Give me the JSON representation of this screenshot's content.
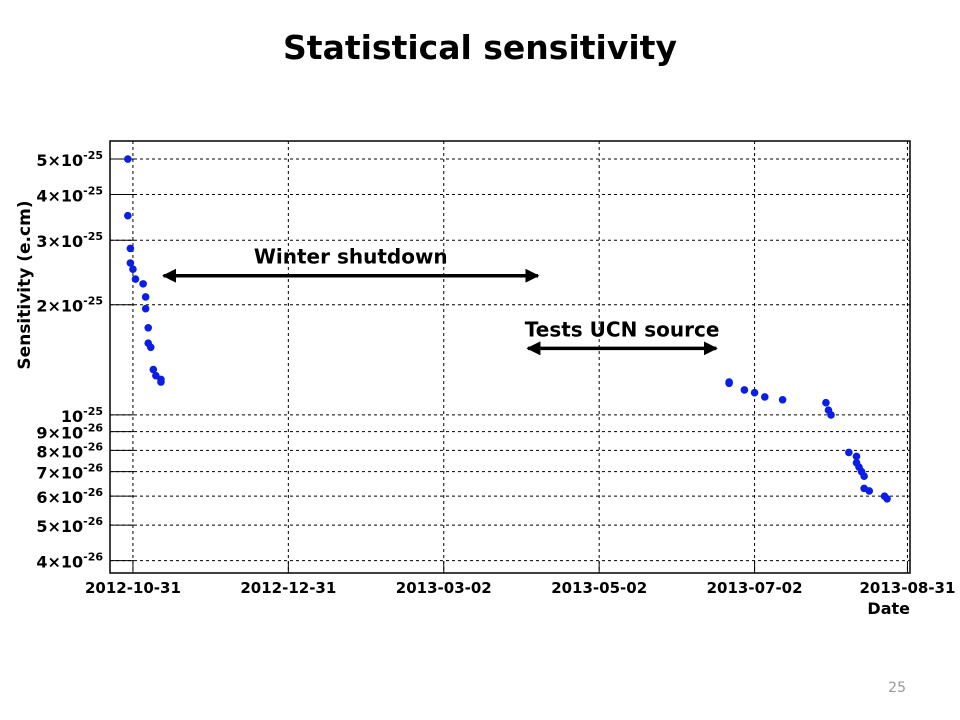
{
  "slide": {
    "title": "Statistical sensitivity",
    "page_number": "25"
  },
  "chart_data": {
    "type": "scatter",
    "title": "",
    "xlabel": "Date",
    "ylabel": "Sensitivity (e.cm)",
    "x_axis_type": "date",
    "y_scale": "log",
    "xlim": [
      "2012-10-22",
      "2013-09-01"
    ],
    "ylim": [
      3.7e-26,
      5.6e-25
    ],
    "grid": true,
    "x_ticks": [
      "2012-10-31",
      "2012-12-31",
      "2013-03-02",
      "2013-05-02",
      "2013-07-02",
      "2013-08-31"
    ],
    "y_ticks": [
      {
        "value": 4e-26,
        "mantissa": "4",
        "exponent": "-26"
      },
      {
        "value": 5e-26,
        "mantissa": "5",
        "exponent": "-26"
      },
      {
        "value": 6e-26,
        "mantissa": "6",
        "exponent": "-26"
      },
      {
        "value": 7e-26,
        "mantissa": "7",
        "exponent": "-26"
      },
      {
        "value": 8e-26,
        "mantissa": "8",
        "exponent": "-26"
      },
      {
        "value": 9e-26,
        "mantissa": "9",
        "exponent": "-26"
      },
      {
        "value": 1e-25,
        "mantissa": "",
        "exponent": "-25"
      },
      {
        "value": 2e-25,
        "mantissa": "2",
        "exponent": "-25"
      },
      {
        "value": 3e-25,
        "mantissa": "3",
        "exponent": "-25"
      },
      {
        "value": 4e-25,
        "mantissa": "4",
        "exponent": "-25"
      },
      {
        "value": 5e-25,
        "mantissa": "5",
        "exponent": "-25"
      }
    ],
    "series": [
      {
        "color": "#0a1ee6",
        "points": [
          {
            "x": "2012-10-29",
            "y": 5e-25
          },
          {
            "x": "2012-10-29",
            "y": 3.5e-25
          },
          {
            "x": "2012-10-30",
            "y": 2.85e-25
          },
          {
            "x": "2012-10-30",
            "y": 2.6e-25
          },
          {
            "x": "2012-10-31",
            "y": 2.5e-25
          },
          {
            "x": "2012-11-01",
            "y": 2.35e-25
          },
          {
            "x": "2012-11-04",
            "y": 2.28e-25
          },
          {
            "x": "2012-11-05",
            "y": 2.1e-25
          },
          {
            "x": "2012-11-05",
            "y": 1.95e-25
          },
          {
            "x": "2012-11-06",
            "y": 1.73e-25
          },
          {
            "x": "2012-11-06",
            "y": 1.57e-25
          },
          {
            "x": "2012-11-07",
            "y": 1.53e-25
          },
          {
            "x": "2012-11-08",
            "y": 1.33e-25
          },
          {
            "x": "2012-11-09",
            "y": 1.28e-25
          },
          {
            "x": "2012-11-11",
            "y": 1.25e-25
          },
          {
            "x": "2012-11-11",
            "y": 1.23e-25
          },
          {
            "x": "2013-06-22",
            "y": 1.23e-25
          },
          {
            "x": "2013-06-22",
            "y": 1.22e-25
          },
          {
            "x": "2013-06-28",
            "y": 1.17e-25
          },
          {
            "x": "2013-07-02",
            "y": 1.15e-25
          },
          {
            "x": "2013-07-06",
            "y": 1.12e-25
          },
          {
            "x": "2013-07-13",
            "y": 1.1e-25
          },
          {
            "x": "2013-07-30",
            "y": 1.08e-25
          },
          {
            "x": "2013-07-31",
            "y": 1.03e-25
          },
          {
            "x": "2013-08-01",
            "y": 1e-25
          },
          {
            "x": "2013-08-08",
            "y": 7.9e-26
          },
          {
            "x": "2013-08-11",
            "y": 7.7e-26
          },
          {
            "x": "2013-08-11",
            "y": 7.4e-26
          },
          {
            "x": "2013-08-12",
            "y": 7.2e-26
          },
          {
            "x": "2013-08-13",
            "y": 7e-26
          },
          {
            "x": "2013-08-14",
            "y": 6.8e-26
          },
          {
            "x": "2013-08-14",
            "y": 6.3e-26
          },
          {
            "x": "2013-08-16",
            "y": 6.2e-26
          },
          {
            "x": "2013-08-22",
            "y": 6e-26
          },
          {
            "x": "2013-08-23",
            "y": 5.9e-26
          }
        ]
      }
    ],
    "annotations": [
      {
        "text": "Winter shutdown",
        "type": "double-arrow",
        "x_start": "2012-11-12",
        "x_end": "2013-04-08",
        "y": 2.4e-25
      },
      {
        "text": "Tests UCN source",
        "type": "double-arrow",
        "x_start": "2013-04-04",
        "x_end": "2013-06-17",
        "y": 1.52e-25
      }
    ]
  }
}
